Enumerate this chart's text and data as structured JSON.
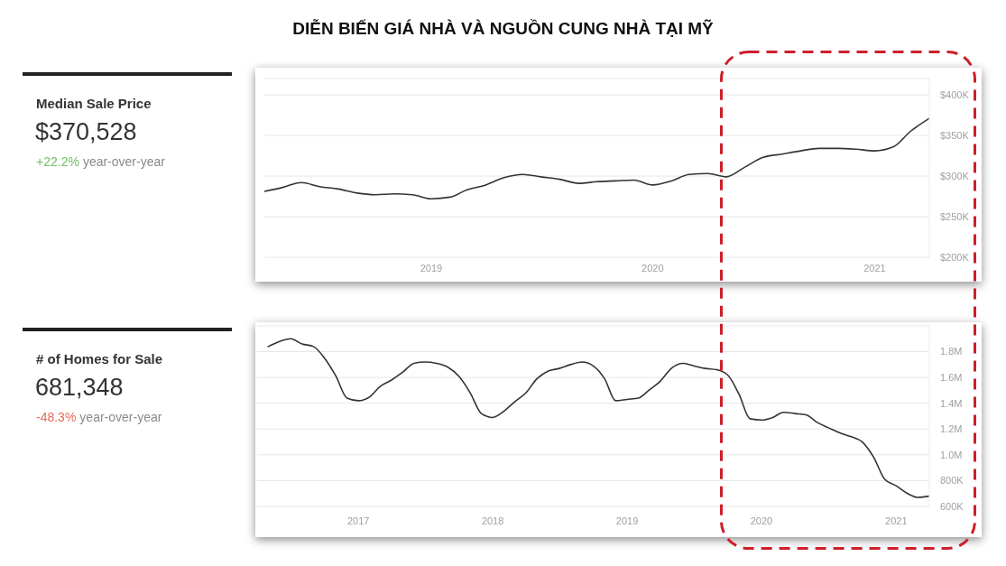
{
  "chart_data": [
    {
      "type": "other",
      "title": "DIỄN BIẾN GIÁ NHÀ VÀ NGUỒN CUNG NHÀ TẠI MỸ"
    },
    {
      "type": "other",
      "title": "Median Sale Price",
      "annotations": [
        "$370,528",
        "+22.2%",
        "year-over-year"
      ]
    },
    {
      "type": "line",
      "x": [
        "2018-04",
        "2018-05",
        "2018-06",
        "2018-07",
        "2018-08",
        "2018-09",
        "2018-10",
        "2018-11",
        "2018-12",
        "2019-01",
        "2019-02",
        "2019-03",
        "2019-04",
        "2019-05",
        "2019-06",
        "2019-07",
        "2019-08",
        "2019-09",
        "2019-10",
        "2019-11",
        "2019-12",
        "2020-01",
        "2020-02",
        "2020-03",
        "2020-04",
        "2020-05",
        "2020-06",
        "2020-07",
        "2020-08",
        "2020-09",
        "2020-10",
        "2020-11",
        "2020-12",
        "2021-01",
        "2021-02",
        "2021-03",
        "2021-04"
      ],
      "values": [
        281000,
        286000,
        292000,
        287000,
        284000,
        279000,
        277000,
        278000,
        277000,
        272000,
        274000,
        283000,
        289000,
        298000,
        302000,
        299000,
        296000,
        291000,
        293000,
        294000,
        295000,
        289000,
        294000,
        302000,
        303000,
        299000,
        311000,
        323000,
        327000,
        331000,
        334000,
        334000,
        333000,
        331000,
        336000,
        355000,
        371000
      ],
      "color": "#333333",
      "xlim": [
        "2018-04",
        "2021-04"
      ],
      "xticks": [
        "2019",
        "2020",
        "2021"
      ],
      "ylim": [
        200000,
        420000
      ],
      "yticks": [
        {
          "value": 200000,
          "label": "$200K"
        },
        {
          "value": 250000,
          "label": "$250K"
        },
        {
          "value": 300000,
          "label": "$300K"
        },
        {
          "value": 350000,
          "label": "$350K"
        },
        {
          "value": 400000,
          "label": "$400K"
        }
      ],
      "grid": "y"
    },
    {
      "type": "other",
      "title": "# of Homes for Sale",
      "annotations": [
        "681,348",
        "-48.3%",
        "year-over-year"
      ]
    },
    {
      "type": "line",
      "x": [
        "2016-05",
        "2016-06",
        "2016-07",
        "2016-08",
        "2016-09",
        "2016-10",
        "2016-11",
        "2016-12",
        "2017-01",
        "2017-02",
        "2017-03",
        "2017-04",
        "2017-05",
        "2017-06",
        "2017-07",
        "2017-08",
        "2017-09",
        "2017-10",
        "2017-11",
        "2017-12",
        "2018-01",
        "2018-02",
        "2018-03",
        "2018-04",
        "2018-05",
        "2018-06",
        "2018-07",
        "2018-08",
        "2018-09",
        "2018-10",
        "2018-11",
        "2018-12",
        "2019-01",
        "2019-02",
        "2019-03",
        "2019-04",
        "2019-05",
        "2019-06",
        "2019-07",
        "2019-08",
        "2019-09",
        "2019-10",
        "2019-11",
        "2019-12",
        "2020-01",
        "2020-02",
        "2020-03",
        "2020-04",
        "2020-05",
        "2020-06",
        "2020-07",
        "2020-08",
        "2020-09",
        "2020-10",
        "2020-11",
        "2020-12",
        "2021-01",
        "2021-02",
        "2021-03",
        "2021-04"
      ],
      "values": [
        1840000,
        1880000,
        1900000,
        1860000,
        1840000,
        1750000,
        1610000,
        1440000,
        1420000,
        1450000,
        1530000,
        1580000,
        1640000,
        1710000,
        1720000,
        1710000,
        1680000,
        1610000,
        1480000,
        1320000,
        1290000,
        1340000,
        1410000,
        1480000,
        1590000,
        1650000,
        1670000,
        1700000,
        1720000,
        1690000,
        1590000,
        1420000,
        1430000,
        1440000,
        1500000,
        1570000,
        1670000,
        1710000,
        1690000,
        1670000,
        1660000,
        1620000,
        1470000,
        1280000,
        1270000,
        1290000,
        1330000,
        1320000,
        1310000,
        1250000,
        1210000,
        1170000,
        1140000,
        1100000,
        980000,
        810000,
        760000,
        700000,
        670000,
        680000
      ],
      "color": "#333333",
      "xlim": [
        "2016-04",
        "2021-04"
      ],
      "xticks": [
        "2017",
        "2018",
        "2019",
        "2020",
        "2021"
      ],
      "ylim": [
        600000,
        2000000
      ],
      "yticks": [
        {
          "value": 600000,
          "label": "600K"
        },
        {
          "value": 800000,
          "label": "800K"
        },
        {
          "value": 1000000,
          "label": "1.0M"
        },
        {
          "value": 1200000,
          "label": "1.2M"
        },
        {
          "value": 1400000,
          "label": "1.4M"
        },
        {
          "value": 1600000,
          "label": "1.6M"
        },
        {
          "value": 1800000,
          "label": "1.8M"
        }
      ],
      "grid": "y"
    }
  ]
}
